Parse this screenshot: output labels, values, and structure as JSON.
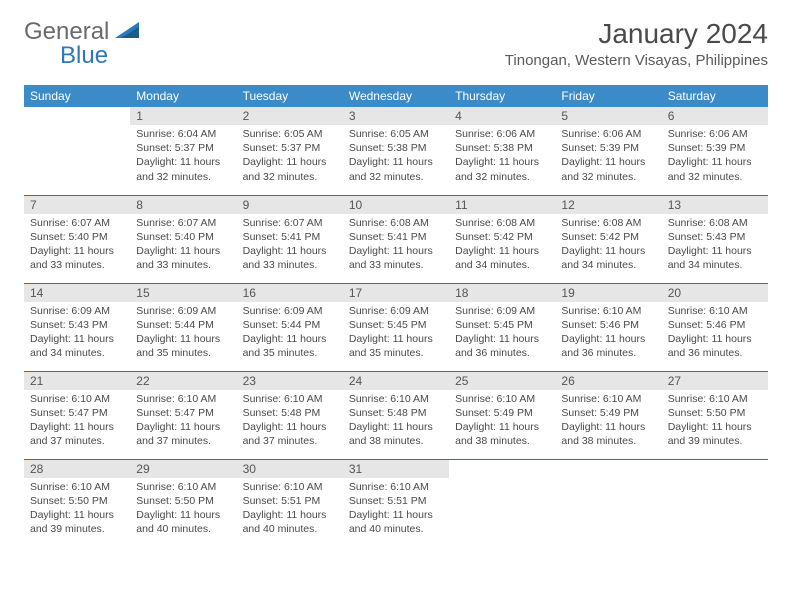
{
  "brand": {
    "part1": "General",
    "part2": "Blue"
  },
  "title": "January 2024",
  "location": "Tinongan, Western Visayas, Philippines",
  "colors": {
    "header_bg": "#3b8bc9",
    "header_text": "#ffffff",
    "daynum_bg": "#e6e6e6",
    "daynum_text": "#555555",
    "body_text": "#4a4a4a",
    "rule": "#2f6fa3",
    "brand_gray": "#6a6a6a",
    "brand_blue": "#2f78b7"
  },
  "day_labels": [
    "Sunday",
    "Monday",
    "Tuesday",
    "Wednesday",
    "Thursday",
    "Friday",
    "Saturday"
  ],
  "start_offset": 1,
  "days": [
    {
      "n": 1,
      "sunrise": "6:04 AM",
      "sunset": "5:37 PM",
      "daylight": "11 hours and 32 minutes."
    },
    {
      "n": 2,
      "sunrise": "6:05 AM",
      "sunset": "5:37 PM",
      "daylight": "11 hours and 32 minutes."
    },
    {
      "n": 3,
      "sunrise": "6:05 AM",
      "sunset": "5:38 PM",
      "daylight": "11 hours and 32 minutes."
    },
    {
      "n": 4,
      "sunrise": "6:06 AM",
      "sunset": "5:38 PM",
      "daylight": "11 hours and 32 minutes."
    },
    {
      "n": 5,
      "sunrise": "6:06 AM",
      "sunset": "5:39 PM",
      "daylight": "11 hours and 32 minutes."
    },
    {
      "n": 6,
      "sunrise": "6:06 AM",
      "sunset": "5:39 PM",
      "daylight": "11 hours and 32 minutes."
    },
    {
      "n": 7,
      "sunrise": "6:07 AM",
      "sunset": "5:40 PM",
      "daylight": "11 hours and 33 minutes."
    },
    {
      "n": 8,
      "sunrise": "6:07 AM",
      "sunset": "5:40 PM",
      "daylight": "11 hours and 33 minutes."
    },
    {
      "n": 9,
      "sunrise": "6:07 AM",
      "sunset": "5:41 PM",
      "daylight": "11 hours and 33 minutes."
    },
    {
      "n": 10,
      "sunrise": "6:08 AM",
      "sunset": "5:41 PM",
      "daylight": "11 hours and 33 minutes."
    },
    {
      "n": 11,
      "sunrise": "6:08 AM",
      "sunset": "5:42 PM",
      "daylight": "11 hours and 34 minutes."
    },
    {
      "n": 12,
      "sunrise": "6:08 AM",
      "sunset": "5:42 PM",
      "daylight": "11 hours and 34 minutes."
    },
    {
      "n": 13,
      "sunrise": "6:08 AM",
      "sunset": "5:43 PM",
      "daylight": "11 hours and 34 minutes."
    },
    {
      "n": 14,
      "sunrise": "6:09 AM",
      "sunset": "5:43 PM",
      "daylight": "11 hours and 34 minutes."
    },
    {
      "n": 15,
      "sunrise": "6:09 AM",
      "sunset": "5:44 PM",
      "daylight": "11 hours and 35 minutes."
    },
    {
      "n": 16,
      "sunrise": "6:09 AM",
      "sunset": "5:44 PM",
      "daylight": "11 hours and 35 minutes."
    },
    {
      "n": 17,
      "sunrise": "6:09 AM",
      "sunset": "5:45 PM",
      "daylight": "11 hours and 35 minutes."
    },
    {
      "n": 18,
      "sunrise": "6:09 AM",
      "sunset": "5:45 PM",
      "daylight": "11 hours and 36 minutes."
    },
    {
      "n": 19,
      "sunrise": "6:10 AM",
      "sunset": "5:46 PM",
      "daylight": "11 hours and 36 minutes."
    },
    {
      "n": 20,
      "sunrise": "6:10 AM",
      "sunset": "5:46 PM",
      "daylight": "11 hours and 36 minutes."
    },
    {
      "n": 21,
      "sunrise": "6:10 AM",
      "sunset": "5:47 PM",
      "daylight": "11 hours and 37 minutes."
    },
    {
      "n": 22,
      "sunrise": "6:10 AM",
      "sunset": "5:47 PM",
      "daylight": "11 hours and 37 minutes."
    },
    {
      "n": 23,
      "sunrise": "6:10 AM",
      "sunset": "5:48 PM",
      "daylight": "11 hours and 37 minutes."
    },
    {
      "n": 24,
      "sunrise": "6:10 AM",
      "sunset": "5:48 PM",
      "daylight": "11 hours and 38 minutes."
    },
    {
      "n": 25,
      "sunrise": "6:10 AM",
      "sunset": "5:49 PM",
      "daylight": "11 hours and 38 minutes."
    },
    {
      "n": 26,
      "sunrise": "6:10 AM",
      "sunset": "5:49 PM",
      "daylight": "11 hours and 38 minutes."
    },
    {
      "n": 27,
      "sunrise": "6:10 AM",
      "sunset": "5:50 PM",
      "daylight": "11 hours and 39 minutes."
    },
    {
      "n": 28,
      "sunrise": "6:10 AM",
      "sunset": "5:50 PM",
      "daylight": "11 hours and 39 minutes."
    },
    {
      "n": 29,
      "sunrise": "6:10 AM",
      "sunset": "5:50 PM",
      "daylight": "11 hours and 40 minutes."
    },
    {
      "n": 30,
      "sunrise": "6:10 AM",
      "sunset": "5:51 PM",
      "daylight": "11 hours and 40 minutes."
    },
    {
      "n": 31,
      "sunrise": "6:10 AM",
      "sunset": "5:51 PM",
      "daylight": "11 hours and 40 minutes."
    }
  ],
  "field_labels": {
    "sunrise": "Sunrise:",
    "sunset": "Sunset:",
    "daylight": "Daylight:"
  }
}
